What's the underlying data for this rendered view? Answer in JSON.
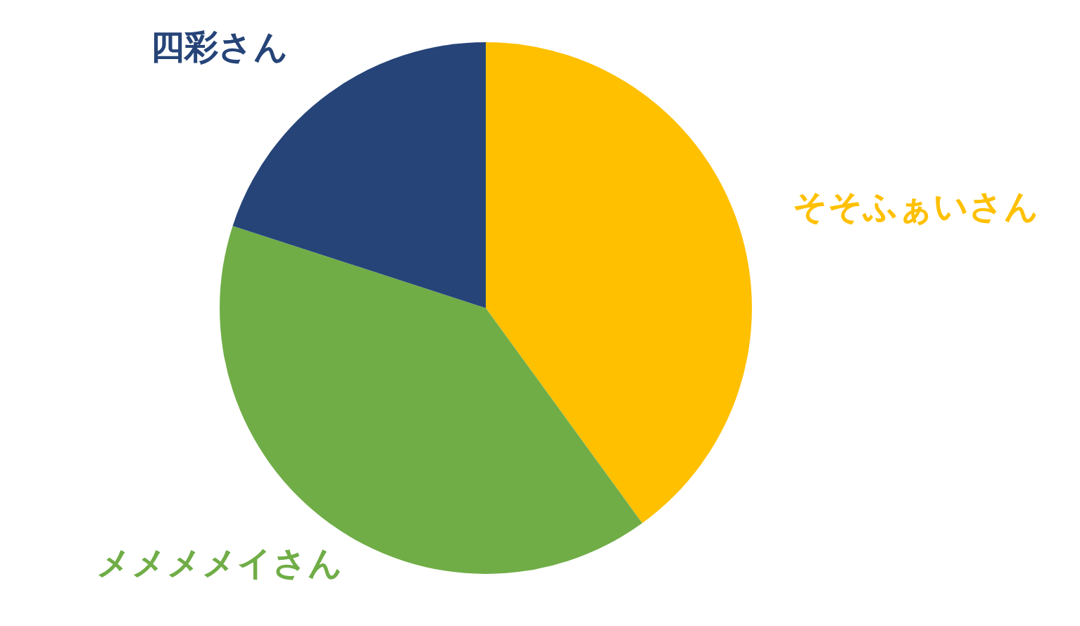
{
  "chart_data": {
    "type": "pie",
    "categories": [
      "そそふぁいさん",
      "メメメメイさん",
      "四彩さん"
    ],
    "values": [
      40,
      40,
      20
    ],
    "colors": [
      "#ffc000",
      "#70ad47",
      "#264478"
    ],
    "legend": false
  }
}
